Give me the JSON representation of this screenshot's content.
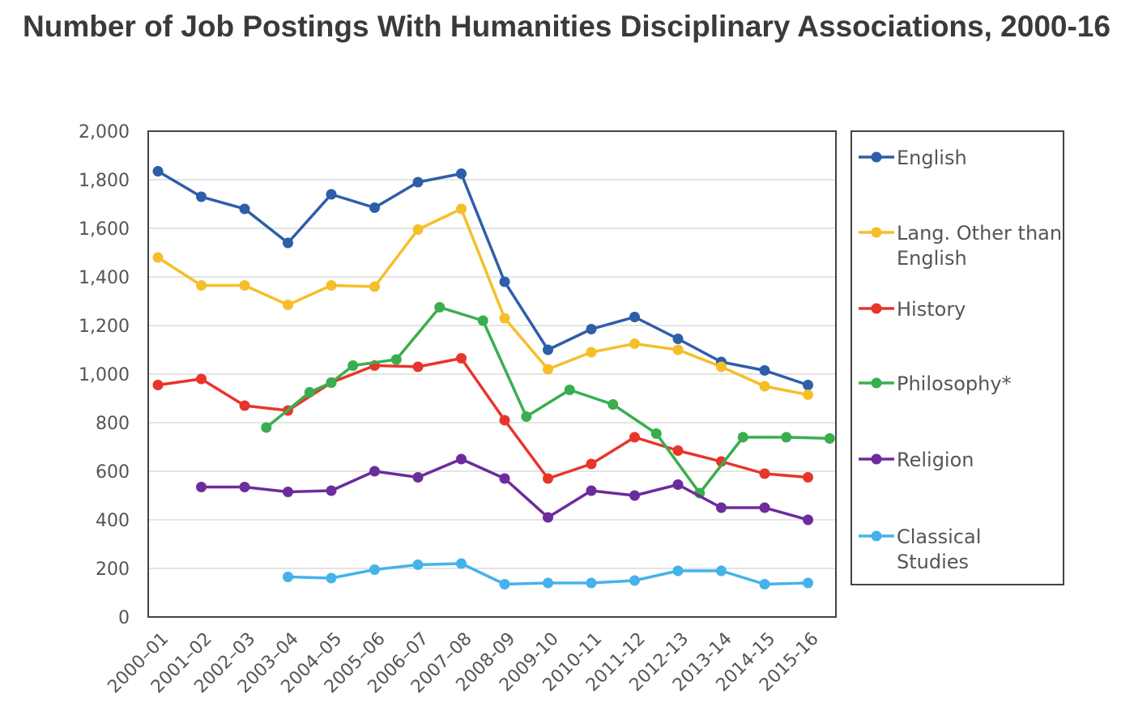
{
  "chart_data": {
    "type": "line",
    "title": "Number of Job Postings With Humanities Disciplinary Associations, 2000-16",
    "xlabel": "",
    "ylabel": "",
    "ylim": [
      0,
      2000
    ],
    "yticks": [
      "0",
      "200",
      "400",
      "600",
      "800",
      "1,000",
      "1,200",
      "1,400",
      "1,600",
      "1,800",
      "2,000"
    ],
    "ytick_values": [
      0,
      200,
      400,
      600,
      800,
      1000,
      1200,
      1400,
      1600,
      1800,
      2000
    ],
    "grid": true,
    "legend_position": "right",
    "categories": [
      "2000–01",
      "2001–02",
      "2002–03",
      "2003–04",
      "2004–05",
      "2005–06",
      "2006–07",
      "2007–08",
      "2008-09",
      "2009-10",
      "2010-11",
      "2011-12",
      "2012-13",
      "2013-14",
      "2014-15",
      "2015-16"
    ],
    "series": [
      {
        "name": "English",
        "label_lines": [
          "English"
        ],
        "color": "#2e5ea8",
        "points": [
          {
            "x": 0,
            "y": 1835
          },
          {
            "x": 1,
            "y": 1730
          },
          {
            "x": 2,
            "y": 1680
          },
          {
            "x": 3,
            "y": 1540
          },
          {
            "x": 4,
            "y": 1740
          },
          {
            "x": 5,
            "y": 1685
          },
          {
            "x": 6,
            "y": 1790
          },
          {
            "x": 7,
            "y": 1825
          },
          {
            "x": 8,
            "y": 1380
          },
          {
            "x": 9,
            "y": 1100
          },
          {
            "x": 10,
            "y": 1185
          },
          {
            "x": 11,
            "y": 1235
          },
          {
            "x": 12,
            "y": 1145
          },
          {
            "x": 13,
            "y": 1050
          },
          {
            "x": 14,
            "y": 1015
          },
          {
            "x": 15,
            "y": 955
          }
        ]
      },
      {
        "name": "Lang. Other than English",
        "label_lines": [
          "Lang. Other than",
          "English"
        ],
        "color": "#f5bf2a",
        "points": [
          {
            "x": 0,
            "y": 1480
          },
          {
            "x": 1,
            "y": 1365
          },
          {
            "x": 2,
            "y": 1365
          },
          {
            "x": 3,
            "y": 1285
          },
          {
            "x": 4,
            "y": 1365
          },
          {
            "x": 5,
            "y": 1360
          },
          {
            "x": 6,
            "y": 1595
          },
          {
            "x": 7,
            "y": 1680
          },
          {
            "x": 8,
            "y": 1230
          },
          {
            "x": 9,
            "y": 1020
          },
          {
            "x": 10,
            "y": 1090
          },
          {
            "x": 11,
            "y": 1125
          },
          {
            "x": 12,
            "y": 1100
          },
          {
            "x": 13,
            "y": 1030
          },
          {
            "x": 14,
            "y": 950
          },
          {
            "x": 15,
            "y": 915
          }
        ]
      },
      {
        "name": "History",
        "label_lines": [
          "History"
        ],
        "color": "#e8352b",
        "points": [
          {
            "x": 0,
            "y": 955
          },
          {
            "x": 1,
            "y": 980
          },
          {
            "x": 2,
            "y": 870
          },
          {
            "x": 3,
            "y": 850
          },
          {
            "x": 4,
            "y": 965
          },
          {
            "x": 5,
            "y": 1035
          },
          {
            "x": 6,
            "y": 1030
          },
          {
            "x": 7,
            "y": 1065
          },
          {
            "x": 8,
            "y": 810
          },
          {
            "x": 9,
            "y": 570
          },
          {
            "x": 10,
            "y": 630
          },
          {
            "x": 11,
            "y": 740
          },
          {
            "x": 12,
            "y": 685
          },
          {
            "x": 13,
            "y": 640
          },
          {
            "x": 14,
            "y": 590
          },
          {
            "x": 15,
            "y": 575
          }
        ]
      },
      {
        "name": "Philosophy*",
        "label_lines": [
          "Philosophy*"
        ],
        "color": "#3aae4e",
        "points": [
          {
            "x": 2.5,
            "y": 780
          },
          {
            "x": 3.5,
            "y": 925
          },
          {
            "x": 4,
            "y": 965
          },
          {
            "x": 4.5,
            "y": 1035
          },
          {
            "x": 5.5,
            "y": 1060
          },
          {
            "x": 6.5,
            "y": 1275
          },
          {
            "x": 7.5,
            "y": 1220
          },
          {
            "x": 8.5,
            "y": 825
          },
          {
            "x": 9.5,
            "y": 935
          },
          {
            "x": 10.5,
            "y": 875
          },
          {
            "x": 11.5,
            "y": 755
          },
          {
            "x": 12.5,
            "y": 510
          },
          {
            "x": 13.5,
            "y": 740
          },
          {
            "x": 14.5,
            "y": 740
          },
          {
            "x": 15.5,
            "y": 735
          }
        ]
      },
      {
        "name": "Religion",
        "label_lines": [
          "Religion"
        ],
        "color": "#6b2c9c",
        "points": [
          {
            "x": 1,
            "y": 535
          },
          {
            "x": 2,
            "y": 535
          },
          {
            "x": 3,
            "y": 515
          },
          {
            "x": 4,
            "y": 520
          },
          {
            "x": 5,
            "y": 600
          },
          {
            "x": 6,
            "y": 575
          },
          {
            "x": 7,
            "y": 650
          },
          {
            "x": 8,
            "y": 570
          },
          {
            "x": 9,
            "y": 410
          },
          {
            "x": 10,
            "y": 520
          },
          {
            "x": 11,
            "y": 500
          },
          {
            "x": 12,
            "y": 545
          },
          {
            "x": 13,
            "y": 450
          },
          {
            "x": 14,
            "y": 450
          },
          {
            "x": 15,
            "y": 400
          }
        ]
      },
      {
        "name": "Classical Studies",
        "label_lines": [
          "Classical",
          "Studies"
        ],
        "color": "#45b2ea",
        "points": [
          {
            "x": 3,
            "y": 165
          },
          {
            "x": 4,
            "y": 160
          },
          {
            "x": 5,
            "y": 195
          },
          {
            "x": 6,
            "y": 215
          },
          {
            "x": 7,
            "y": 220
          },
          {
            "x": 8,
            "y": 135
          },
          {
            "x": 9,
            "y": 140
          },
          {
            "x": 10,
            "y": 140
          },
          {
            "x": 11,
            "y": 150
          },
          {
            "x": 12,
            "y": 190
          },
          {
            "x": 13,
            "y": 190
          },
          {
            "x": 14,
            "y": 135
          },
          {
            "x": 15,
            "y": 140
          }
        ]
      }
    ]
  }
}
